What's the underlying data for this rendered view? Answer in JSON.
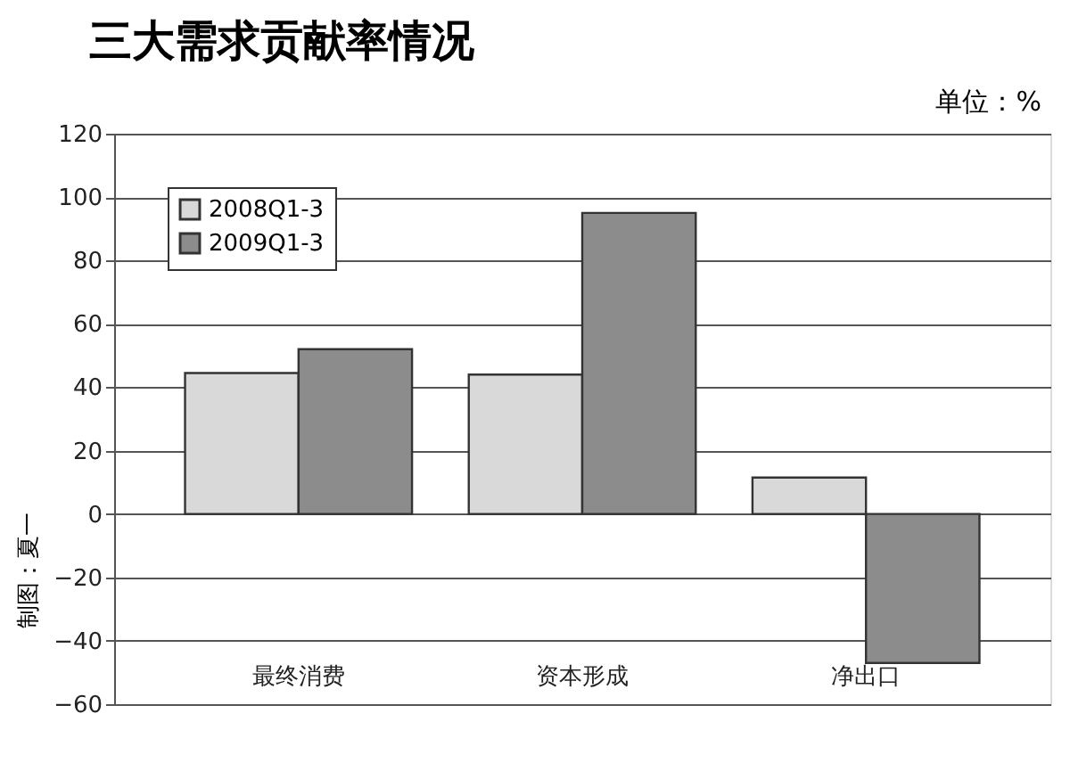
{
  "chart_data": {
    "type": "bar",
    "title": "三大需求贡献率情况",
    "categories": [
      "最终消费",
      "资本形成",
      "净出口"
    ],
    "series": [
      {
        "name": "2008Q1-3",
        "color": "#d9d9d9",
        "values": [
          44.5,
          44,
          11.5
        ]
      },
      {
        "name": "2009Q1-3",
        "color": "#8c8c8c",
        "values": [
          52,
          95,
          -47
        ]
      }
    ],
    "ylim": [
      -60,
      120
    ],
    "yticks": [
      -60,
      -40,
      -20,
      0,
      20,
      40,
      60,
      80,
      100,
      120
    ],
    "grid": "y",
    "legend": "top left",
    "annotations": [
      "单位：%",
      "制图：夏一"
    ]
  }
}
